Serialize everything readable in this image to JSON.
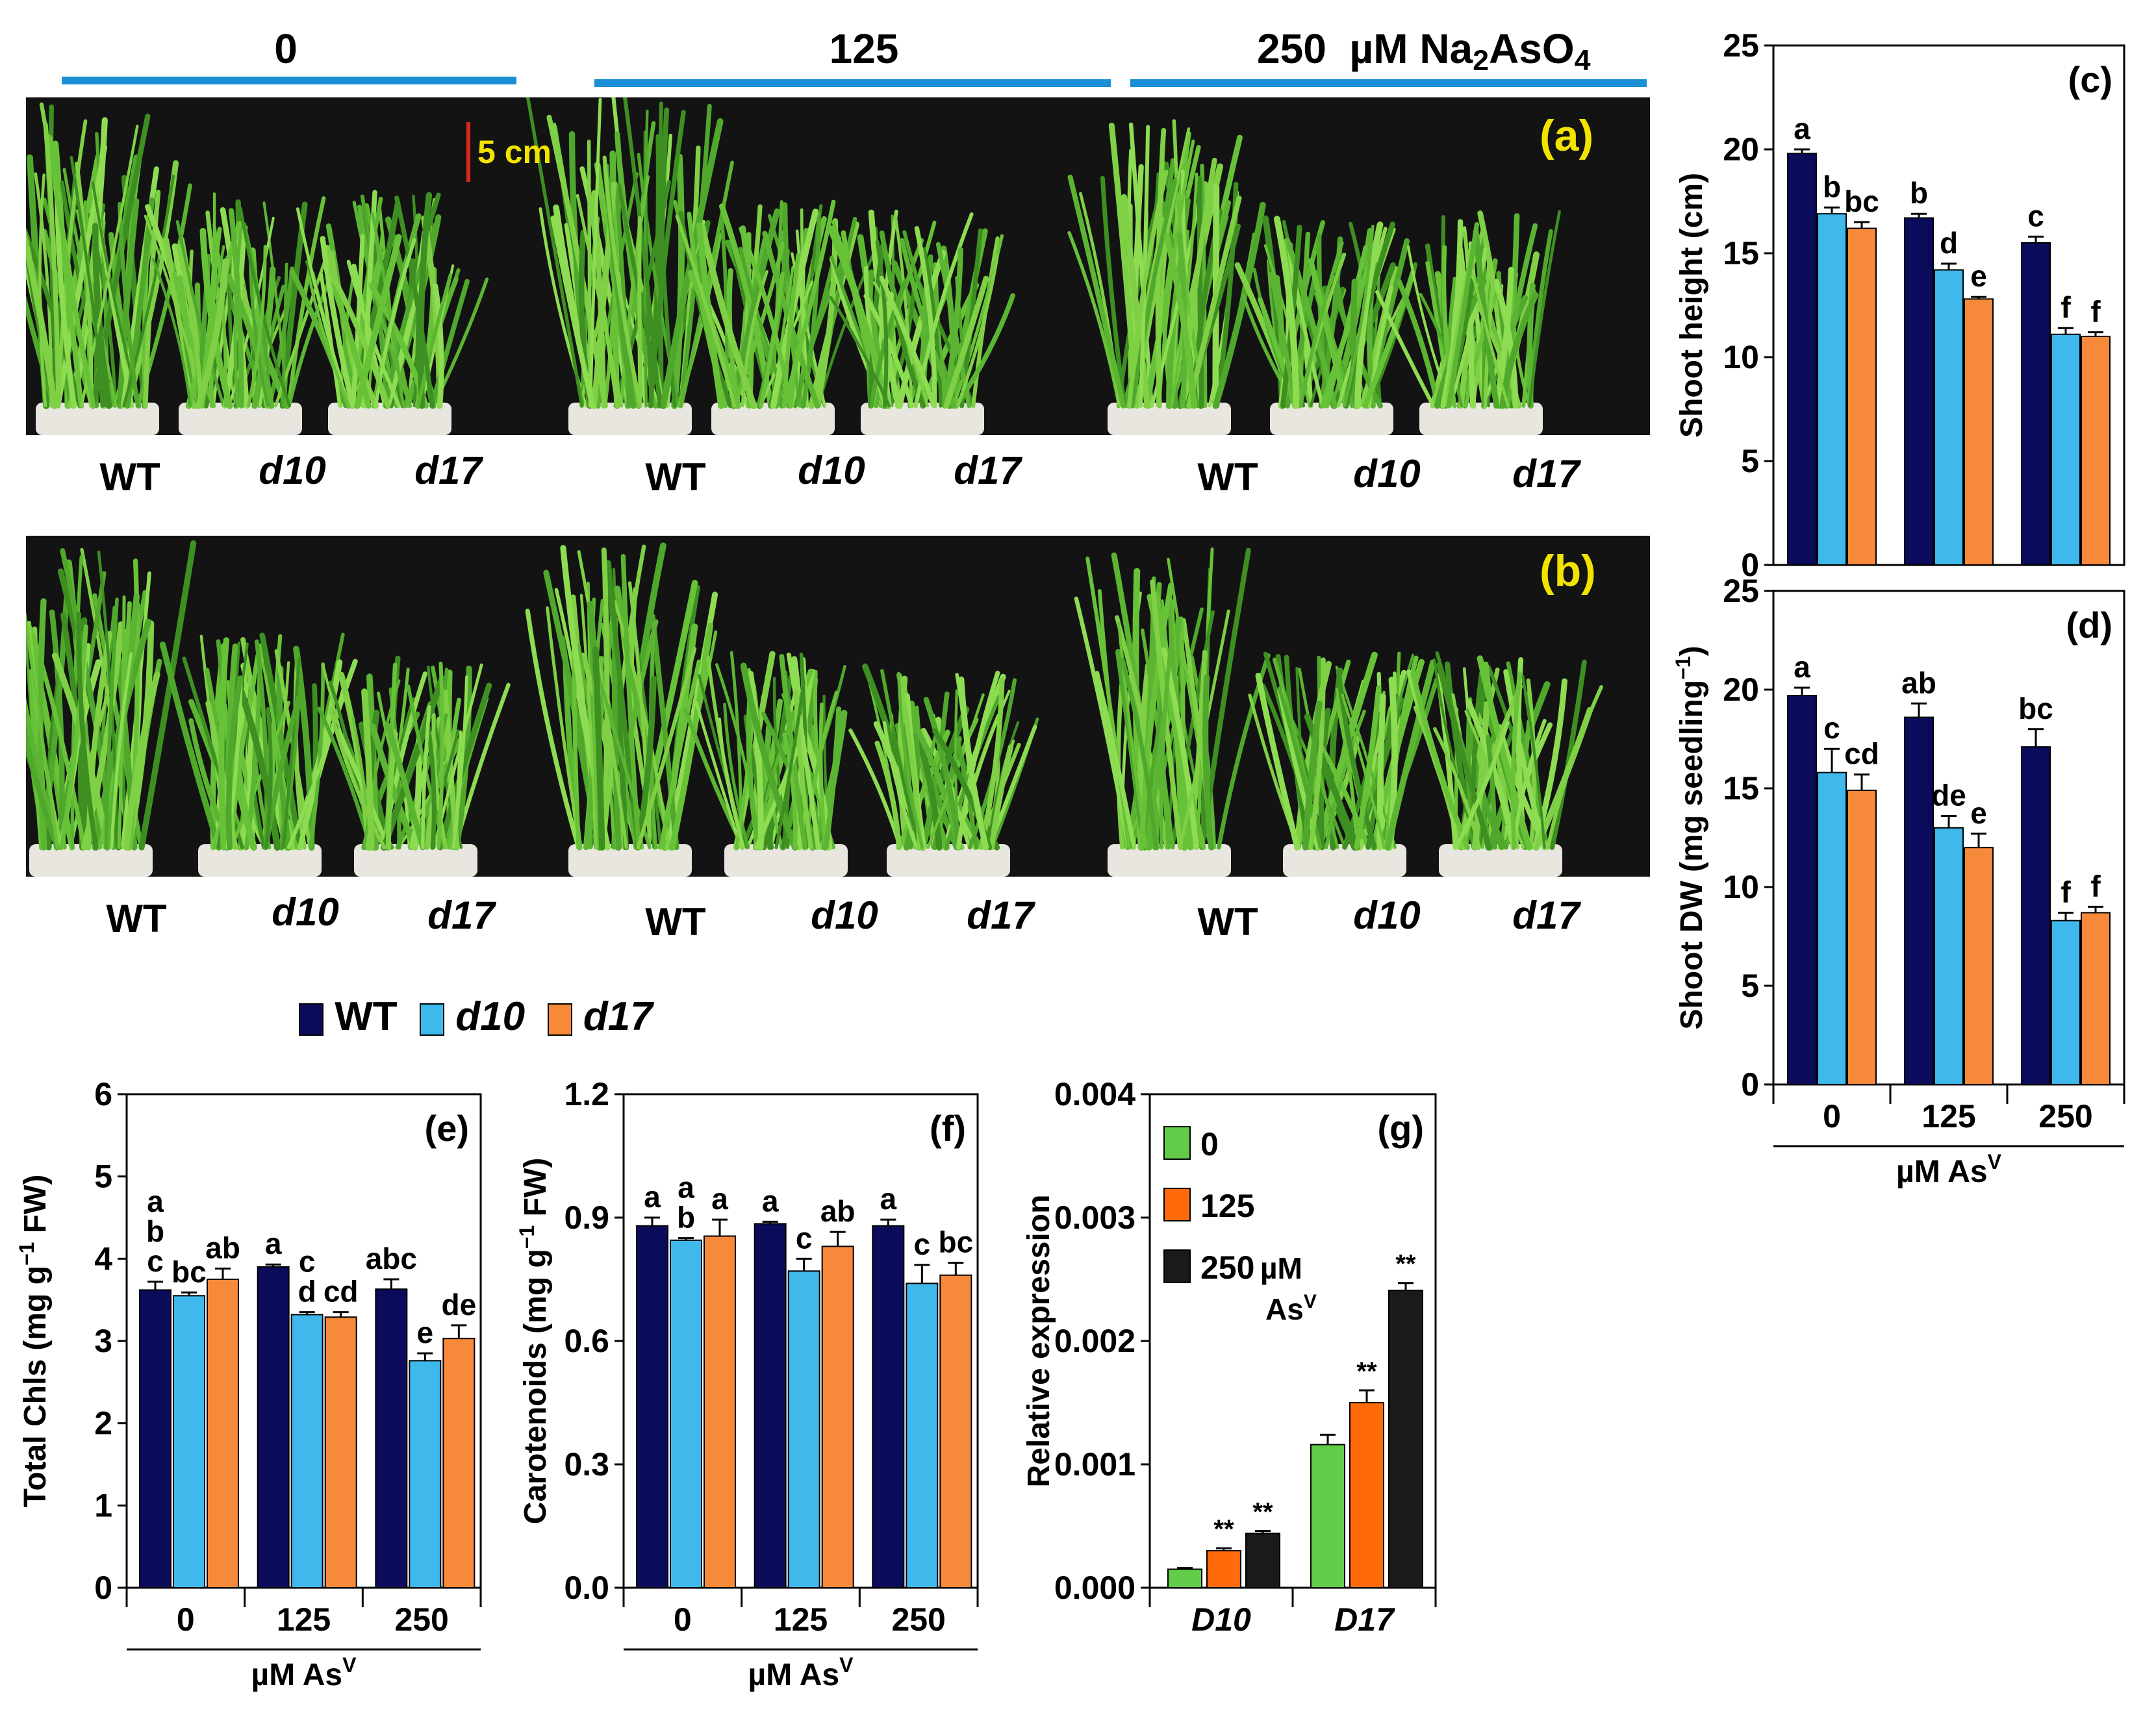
{
  "header": {
    "groups": [
      "0",
      "125",
      "250"
    ],
    "unit_main": "µM Na",
    "unit_sub1": "2",
    "unit_mid": "AsO",
    "unit_sub2": "4"
  },
  "photos": {
    "panel_a_label": "(a)",
    "panel_b_label": "(b)",
    "scale_label": "5 cm",
    "genotype_labels": [
      "WT",
      "d10",
      "d17"
    ]
  },
  "legend": {
    "entries": [
      "WT",
      "d10",
      "d17"
    ]
  },
  "colors": {
    "WT": "#0b0b5c",
    "d10": "#3fb8ec",
    "d17": "#f7893b",
    "expr_0": "#63cd4a",
    "expr_125": "#ff6a0a",
    "expr_250": "#1a1a1a",
    "header_line": "#1b8fd6",
    "photo_bg": "#131313"
  },
  "chart_data": [
    {
      "id": "c",
      "type": "bar",
      "panel_label": "(c)",
      "title": "",
      "xlabel": "µM As",
      "xlabel_sup": "V",
      "ylabel": "Shoot height (cm)",
      "ylim": [
        0,
        25
      ],
      "yticks": [
        "0",
        "5",
        "10",
        "15",
        "20",
        "25"
      ],
      "categories": [
        "0",
        "125",
        "250"
      ],
      "series": [
        {
          "name": "WT",
          "values": [
            19.8,
            16.7,
            15.5
          ],
          "errors": [
            0.2,
            0.2,
            0.3
          ],
          "letters": [
            "a",
            "b",
            "c"
          ]
        },
        {
          "name": "d10",
          "values": [
            16.9,
            14.2,
            11.1
          ],
          "errors": [
            0.3,
            0.3,
            0.3
          ],
          "letters": [
            "b",
            "d",
            "f"
          ]
        },
        {
          "name": "d17",
          "values": [
            16.2,
            12.8,
            11.0
          ],
          "errors": [
            0.3,
            0.1,
            0.2
          ],
          "letters": [
            "bc",
            "e",
            "f"
          ]
        }
      ]
    },
    {
      "id": "d",
      "type": "bar",
      "panel_label": "(d)",
      "title": "",
      "xlabel": "µM As",
      "xlabel_sup": "V",
      "ylabel": "Shoot DW (mg seedling",
      "ylabel_sup": "−1",
      "ylabel_end": ")",
      "ylim": [
        0,
        25
      ],
      "yticks": [
        "0",
        "5",
        "10",
        "15",
        "20",
        "25"
      ],
      "categories": [
        "0",
        "125",
        "250"
      ],
      "series": [
        {
          "name": "WT",
          "values": [
            19.7,
            18.6,
            17.1
          ],
          "errors": [
            0.4,
            0.7,
            0.9
          ],
          "letters": [
            "a",
            "ab",
            "bc"
          ]
        },
        {
          "name": "d10",
          "values": [
            15.8,
            13.0,
            8.3
          ],
          "errors": [
            1.2,
            0.6,
            0.4
          ],
          "letters": [
            "c",
            "de",
            "f"
          ]
        },
        {
          "name": "d17",
          "values": [
            14.9,
            12.0,
            8.7
          ],
          "errors": [
            0.8,
            0.7,
            0.3
          ],
          "letters": [
            "cd",
            "e",
            "f"
          ]
        }
      ]
    },
    {
      "id": "e",
      "type": "bar",
      "panel_label": "(e)",
      "title": "",
      "xlabel": "µM As",
      "xlabel_sup": "V",
      "ylabel": "Total Chls (mg g",
      "ylabel_sup": "−1",
      "ylabel_end": " FW)",
      "ylim": [
        0,
        6
      ],
      "yticks": [
        "0",
        "1",
        "2",
        "3",
        "4",
        "5",
        "6"
      ],
      "categories": [
        "0",
        "125",
        "250"
      ],
      "series": [
        {
          "name": "WT",
          "values": [
            3.62,
            3.9,
            3.63
          ],
          "errors": [
            0.1,
            0.03,
            0.12
          ],
          "letters": [
            "a\nb\nc",
            "a",
            "abc"
          ]
        },
        {
          "name": "d10",
          "values": [
            3.55,
            3.32,
            2.76
          ],
          "errors": [
            0.04,
            0.03,
            0.09
          ],
          "letters": [
            "bc",
            "c\nd",
            "e"
          ]
        },
        {
          "name": "d17",
          "values": [
            3.75,
            3.29,
            3.03
          ],
          "errors": [
            0.13,
            0.06,
            0.16
          ],
          "letters": [
            "ab",
            "cd",
            "de"
          ]
        }
      ]
    },
    {
      "id": "f",
      "type": "bar",
      "panel_label": "(f)",
      "title": "",
      "xlabel": "µM As",
      "xlabel_sup": "V",
      "ylabel": "Carotenoids (mg g",
      "ylabel_sup": "−1",
      "ylabel_end": " FW)",
      "ylim": [
        0,
        1.2
      ],
      "yticks": [
        "0.0",
        "0.3",
        "0.6",
        "0.9",
        "1.2"
      ],
      "categories": [
        "0",
        "125",
        "250"
      ],
      "series": [
        {
          "name": "WT",
          "values": [
            0.88,
            0.885,
            0.88
          ],
          "errors": [
            0.02,
            0.005,
            0.015
          ],
          "letters": [
            "a",
            "a",
            "a"
          ]
        },
        {
          "name": "d10",
          "values": [
            0.845,
            0.77,
            0.74
          ],
          "errors": [
            0.005,
            0.03,
            0.045
          ],
          "letters": [
            "a\nb",
            "c",
            "c"
          ]
        },
        {
          "name": "d17",
          "values": [
            0.855,
            0.83,
            0.76
          ],
          "errors": [
            0.04,
            0.035,
            0.03
          ],
          "letters": [
            "a",
            "ab",
            "bc"
          ]
        }
      ]
    },
    {
      "id": "g",
      "type": "bar",
      "panel_label": "(g)",
      "title": "",
      "xlabel": "",
      "ylabel": "Relative expression",
      "ylim": [
        0,
        0.004
      ],
      "yticks": [
        "0.000",
        "0.001",
        "0.002",
        "0.003",
        "0.004"
      ],
      "categories": [
        "D10",
        "D17"
      ],
      "legend": [
        "0",
        "125",
        "250",
        "µM",
        "As",
        "V"
      ],
      "series": [
        {
          "name": "0",
          "values": [
            0.00015,
            0.00116
          ],
          "errors": [
            1e-05,
            8e-05
          ],
          "letters": [
            "",
            ""
          ]
        },
        {
          "name": "125",
          "values": [
            0.0003,
            0.0015
          ],
          "errors": [
            2e-05,
            0.0001
          ],
          "letters": [
            "**",
            "**"
          ]
        },
        {
          "name": "250",
          "values": [
            0.00044,
            0.00241
          ],
          "errors": [
            2e-05,
            6e-05
          ],
          "letters": [
            "**",
            "**"
          ]
        }
      ]
    }
  ]
}
